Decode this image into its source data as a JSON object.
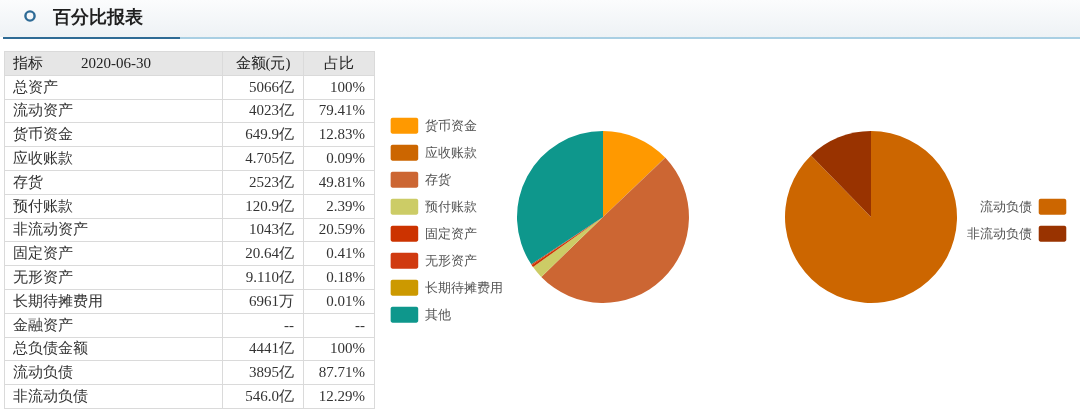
{
  "chart_data": [
    {
      "type": "other",
      "title": "百分比报表",
      "ylabel": "指标",
      "subtitle": "2020-06-30",
      "categories": [
        "金额(元)",
        "占比"
      ],
      "y_categories": [
        "总资产",
        "流动资产",
        "货币资金",
        "应收账款",
        "存货",
        "预付账款",
        "非流动资产",
        "固定资产",
        "无形资产",
        "长期待摊费用",
        "金融资产",
        "总负债金额",
        "流动负债",
        "非流动负债"
      ],
      "cell_labels": [
        [
          "5066亿",
          "100%"
        ],
        [
          "4023亿",
          "79.41%"
        ],
        [
          "649.9亿",
          "12.83%"
        ],
        [
          "4.705亿",
          "0.09%"
        ],
        [
          "2523亿",
          "49.81%"
        ],
        [
          "120.9亿",
          "2.39%"
        ],
        [
          "1043亿",
          "20.59%"
        ],
        [
          "20.64亿",
          "0.41%"
        ],
        [
          "9.110亿",
          "0.18%"
        ],
        [
          "6961万",
          "0.01%"
        ],
        [
          "--",
          "--"
        ],
        [
          "4441亿",
          "100%"
        ],
        [
          "3895亿",
          "87.71%"
        ],
        [
          "546.0亿",
          "12.29%"
        ]
      ]
    },
    {
      "type": "pie",
      "categories": [
        "货币资金",
        "应收账款",
        "存货",
        "预付账款",
        "固定资产",
        "无形资产",
        "长期待摊费用",
        "其他"
      ],
      "values": [
        12.83,
        0.09,
        49.81,
        2.39,
        0.41,
        0.18,
        null,
        34.28
      ],
      "colors": [
        "#ff9900",
        "#cc6600",
        "#cc6633",
        "#cccc66",
        "#cc3300",
        "#d03a10",
        "#cc9900",
        "#0e978c"
      ],
      "legend": "left"
    },
    {
      "type": "pie",
      "categories": [
        "流动负债",
        "非流动负债"
      ],
      "values": [
        87.71,
        12.29
      ],
      "colors": [
        "#cc6600",
        "#993300"
      ],
      "legend": "right"
    }
  ]
}
